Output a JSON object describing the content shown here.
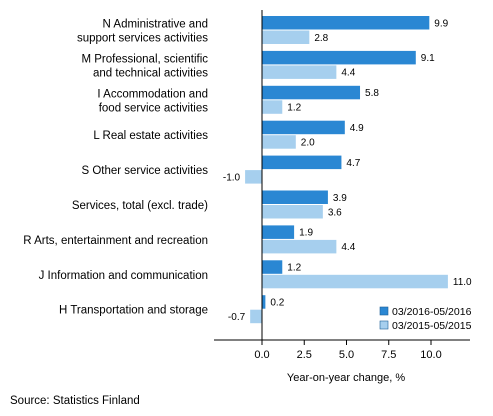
{
  "chart_data": {
    "type": "bar",
    "orientation": "horizontal",
    "categories": [
      [
        "N Administrative and",
        "support services activities"
      ],
      [
        "M Professional, scientific",
        "and technical activities"
      ],
      [
        "I Accommodation and",
        "food service activities"
      ],
      [
        "L Real estate activities"
      ],
      [
        "S Other service activities"
      ],
      [
        "Services, total (excl. trade)"
      ],
      [
        "R Arts, entertainment and recreation"
      ],
      [
        "J Information and communication"
      ],
      [
        "H Transportation and storage"
      ]
    ],
    "series": [
      {
        "name": "03/2016-05/2016",
        "color": "#2a87d3",
        "values": [
          9.9,
          9.1,
          5.8,
          4.9,
          4.7,
          3.9,
          1.9,
          1.2,
          0.2
        ]
      },
      {
        "name": "03/2015-05/2015",
        "color": "#a6cfee",
        "values": [
          2.8,
          4.4,
          1.2,
          2.0,
          -1.0,
          3.6,
          4.4,
          11.0,
          -0.7
        ]
      }
    ],
    "xlabel": "Year-on-year change, %",
    "xlim": [
      -2.8,
      12.5
    ],
    "xticks": [
      0.0,
      2.5,
      5.0,
      7.5,
      10.0
    ],
    "legend_position": "bottom-right",
    "grid": false
  },
  "source": "Source: Statistics Finland"
}
